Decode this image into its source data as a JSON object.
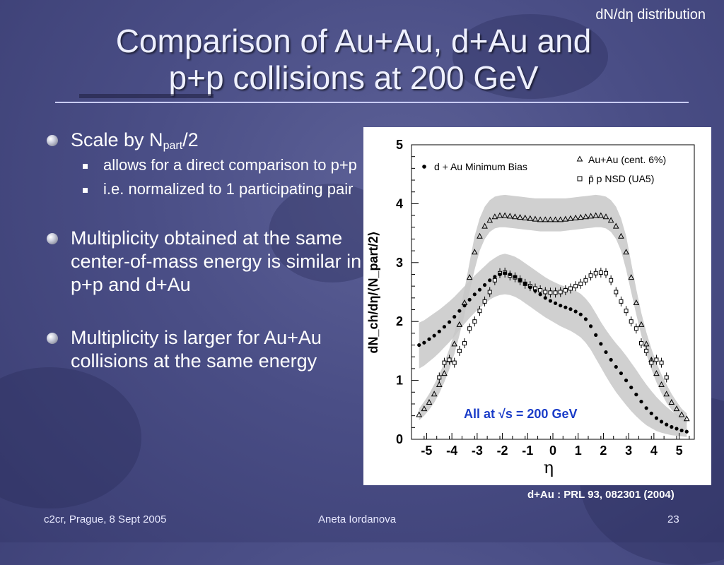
{
  "slide": {
    "tag": "dN/dη distribution",
    "title_line1": "Comparison of Au+Au, d+Au and",
    "title_line2": "p+p collisions at 200 GeV",
    "bullets": [
      {
        "pre": "Scale by N",
        "sub": "part",
        "post": "/2",
        "subs": [
          "allows for a direct comparison to p+p",
          "i.e. normalized to 1 participating pair"
        ]
      },
      {
        "text": "Multiplicity obtained at the same center-of-mass energy is similar in p+p and d+Au"
      },
      {
        "text": "Multiplicity is larger for Au+Au collisions at the same energy"
      }
    ],
    "reference": "d+Au : PRL  93, 082301 (2004)",
    "footer_left": "c2cr, Prague, 8 Sept 2005",
    "footer_center": "Aneta Iordanova",
    "footer_right": "23"
  },
  "chart_data": {
    "type": "scatter",
    "xlabel": "η",
    "ylabel": "dN_ch/dη/⟨N_part/2⟩",
    "xlim": [
      -5.6,
      5.6
    ],
    "ylim": [
      0,
      5
    ],
    "xticks": [
      -5,
      -4,
      -3,
      -2,
      -1,
      0,
      1,
      2,
      3,
      4,
      5
    ],
    "yticks": [
      0,
      1,
      2,
      3,
      4,
      5
    ],
    "annotation": "All at √s = 200 GeV",
    "annotation_color": "#1a3cc8",
    "series": [
      {
        "name": "Au+Au (cent. 6%)",
        "marker": "triangle",
        "x": [
          -5.3,
          -5.1,
          -4.9,
          -4.7,
          -4.5,
          -4.3,
          -4.1,
          -3.9,
          -3.7,
          -3.5,
          -3.3,
          -3.1,
          -2.9,
          -2.7,
          -2.5,
          -2.3,
          -2.1,
          -1.9,
          -1.7,
          -1.5,
          -1.3,
          -1.1,
          -0.9,
          -0.7,
          -0.5,
          -0.3,
          -0.1,
          0.1,
          0.3,
          0.5,
          0.7,
          0.9,
          1.1,
          1.3,
          1.5,
          1.7,
          1.9,
          2.1,
          2.3,
          2.5,
          2.7,
          2.9,
          3.1,
          3.3,
          3.5,
          3.7,
          3.9,
          4.1,
          4.3,
          4.5,
          4.7,
          4.9,
          5.1,
          5.3
        ],
        "y": [
          0.42,
          0.52,
          0.63,
          0.77,
          0.93,
          1.12,
          1.35,
          1.62,
          1.95,
          2.32,
          2.75,
          3.18,
          3.45,
          3.62,
          3.72,
          3.78,
          3.8,
          3.8,
          3.79,
          3.78,
          3.77,
          3.76,
          3.75,
          3.74,
          3.73,
          3.73,
          3.73,
          3.73,
          3.73,
          3.74,
          3.75,
          3.76,
          3.77,
          3.78,
          3.79,
          3.8,
          3.8,
          3.78,
          3.72,
          3.62,
          3.45,
          3.18,
          2.75,
          2.32,
          1.95,
          1.62,
          1.35,
          1.12,
          0.93,
          0.77,
          0.63,
          0.52,
          0.42,
          0.35
        ],
        "band": {
          "lower": [
            0.32,
            0.4,
            0.5,
            0.62,
            0.78,
            0.97,
            1.19,
            1.45,
            1.77,
            2.12,
            2.5,
            2.88,
            3.2,
            3.4,
            3.52,
            3.58,
            3.6,
            3.6,
            3.59,
            3.58,
            3.57,
            3.56,
            3.55,
            3.54,
            3.53,
            3.53,
            3.53,
            3.53,
            3.53,
            3.54,
            3.55,
            3.56,
            3.57,
            3.58,
            3.59,
            3.6,
            3.6,
            3.58,
            3.52,
            3.4,
            3.2,
            2.88,
            2.5,
            2.12,
            1.77,
            1.45,
            1.19,
            0.97,
            0.78,
            0.62,
            0.5,
            0.4,
            0.32,
            0.27
          ],
          "upper": [
            0.52,
            0.64,
            0.77,
            0.93,
            1.1,
            1.3,
            1.54,
            1.82,
            2.15,
            2.55,
            3.0,
            3.45,
            3.75,
            3.95,
            4.06,
            4.12,
            4.14,
            4.15,
            4.14,
            4.13,
            4.12,
            4.11,
            4.1,
            4.09,
            4.09,
            4.09,
            4.09,
            4.09,
            4.09,
            4.09,
            4.1,
            4.11,
            4.12,
            4.13,
            4.14,
            4.15,
            4.14,
            4.12,
            4.06,
            3.95,
            3.75,
            3.45,
            3.0,
            2.55,
            2.15,
            1.82,
            1.54,
            1.3,
            1.1,
            0.93,
            0.77,
            0.64,
            0.52,
            0.44
          ]
        }
      },
      {
        "name": "p̄ p NSD (UA5)",
        "marker": "square",
        "x": [
          -4.5,
          -4.3,
          -4.1,
          -3.9,
          -3.7,
          -3.5,
          -3.3,
          -3.1,
          -2.9,
          -2.7,
          -2.5,
          -2.3,
          -2.1,
          -1.9,
          -1.7,
          -1.5,
          -1.3,
          -1.1,
          -0.9,
          -0.7,
          -0.5,
          -0.3,
          -0.1,
          0.1,
          0.3,
          0.5,
          0.7,
          0.9,
          1.1,
          1.3,
          1.5,
          1.7,
          1.9,
          2.1,
          2.3,
          2.5,
          2.7,
          2.9,
          3.1,
          3.3,
          3.5,
          3.7,
          3.9,
          4.1,
          4.3,
          4.5
        ],
        "y": [
          1.05,
          1.3,
          1.35,
          1.3,
          1.5,
          1.63,
          1.88,
          2.0,
          2.18,
          2.34,
          2.5,
          2.7,
          2.82,
          2.83,
          2.78,
          2.75,
          2.7,
          2.64,
          2.6,
          2.56,
          2.53,
          2.5,
          2.49,
          2.49,
          2.5,
          2.53,
          2.56,
          2.6,
          2.64,
          2.7,
          2.78,
          2.82,
          2.83,
          2.82,
          2.7,
          2.5,
          2.34,
          2.18,
          2.0,
          1.88,
          1.63,
          1.5,
          1.3,
          1.35,
          1.3,
          1.05
        ]
      },
      {
        "name": "d + Au Minimum Bias",
        "marker": "dot",
        "x": [
          -5.3,
          -5.1,
          -4.9,
          -4.7,
          -4.5,
          -4.3,
          -4.1,
          -3.9,
          -3.7,
          -3.5,
          -3.3,
          -3.1,
          -2.9,
          -2.7,
          -2.5,
          -2.3,
          -2.1,
          -1.9,
          -1.7,
          -1.5,
          -1.3,
          -1.1,
          -0.9,
          -0.7,
          -0.5,
          -0.3,
          -0.1,
          0.1,
          0.3,
          0.5,
          0.7,
          0.9,
          1.1,
          1.3,
          1.5,
          1.7,
          1.9,
          2.1,
          2.3,
          2.5,
          2.7,
          2.9,
          3.1,
          3.3,
          3.5,
          3.7,
          3.9,
          4.1,
          4.3,
          4.5,
          4.7,
          4.9,
          5.1,
          5.3
        ],
        "y": [
          1.6,
          1.64,
          1.7,
          1.76,
          1.83,
          1.91,
          1.99,
          2.08,
          2.18,
          2.27,
          2.37,
          2.46,
          2.54,
          2.62,
          2.7,
          2.76,
          2.8,
          2.82,
          2.8,
          2.76,
          2.7,
          2.64,
          2.58,
          2.52,
          2.46,
          2.4,
          2.35,
          2.31,
          2.27,
          2.24,
          2.21,
          2.17,
          2.12,
          2.04,
          1.92,
          1.77,
          1.62,
          1.48,
          1.35,
          1.23,
          1.12,
          1.0,
          0.88,
          0.76,
          0.64,
          0.53,
          0.44,
          0.36,
          0.3,
          0.25,
          0.21,
          0.18,
          0.15,
          0.13
        ],
        "band": {
          "lower": [
            1.2,
            1.25,
            1.32,
            1.39,
            1.47,
            1.56,
            1.65,
            1.75,
            1.86,
            1.96,
            2.06,
            2.15,
            2.23,
            2.3,
            2.37,
            2.42,
            2.45,
            2.46,
            2.45,
            2.42,
            2.37,
            2.31,
            2.25,
            2.19,
            2.13,
            2.07,
            2.02,
            1.97,
            1.92,
            1.88,
            1.84,
            1.79,
            1.73,
            1.64,
            1.52,
            1.37,
            1.22,
            1.07,
            0.93,
            0.8,
            0.69,
            0.58,
            0.48,
            0.39,
            0.31,
            0.24,
            0.19,
            0.14,
            0.11,
            0.09,
            0.07,
            0.06,
            0.05,
            0.04
          ],
          "upper": [
            1.98,
            2.02,
            2.08,
            2.14,
            2.2,
            2.27,
            2.34,
            2.42,
            2.51,
            2.6,
            2.69,
            2.78,
            2.86,
            2.94,
            3.02,
            3.08,
            3.13,
            3.15,
            3.13,
            3.1,
            3.05,
            2.99,
            2.93,
            2.87,
            2.81,
            2.75,
            2.7,
            2.66,
            2.62,
            2.59,
            2.56,
            2.52,
            2.47,
            2.39,
            2.28,
            2.14,
            1.99,
            1.86,
            1.74,
            1.63,
            1.53,
            1.42,
            1.3,
            1.18,
            1.05,
            0.93,
            0.82,
            0.72,
            0.63,
            0.55,
            0.48,
            0.42,
            0.37,
            0.33
          ]
        }
      }
    ]
  }
}
